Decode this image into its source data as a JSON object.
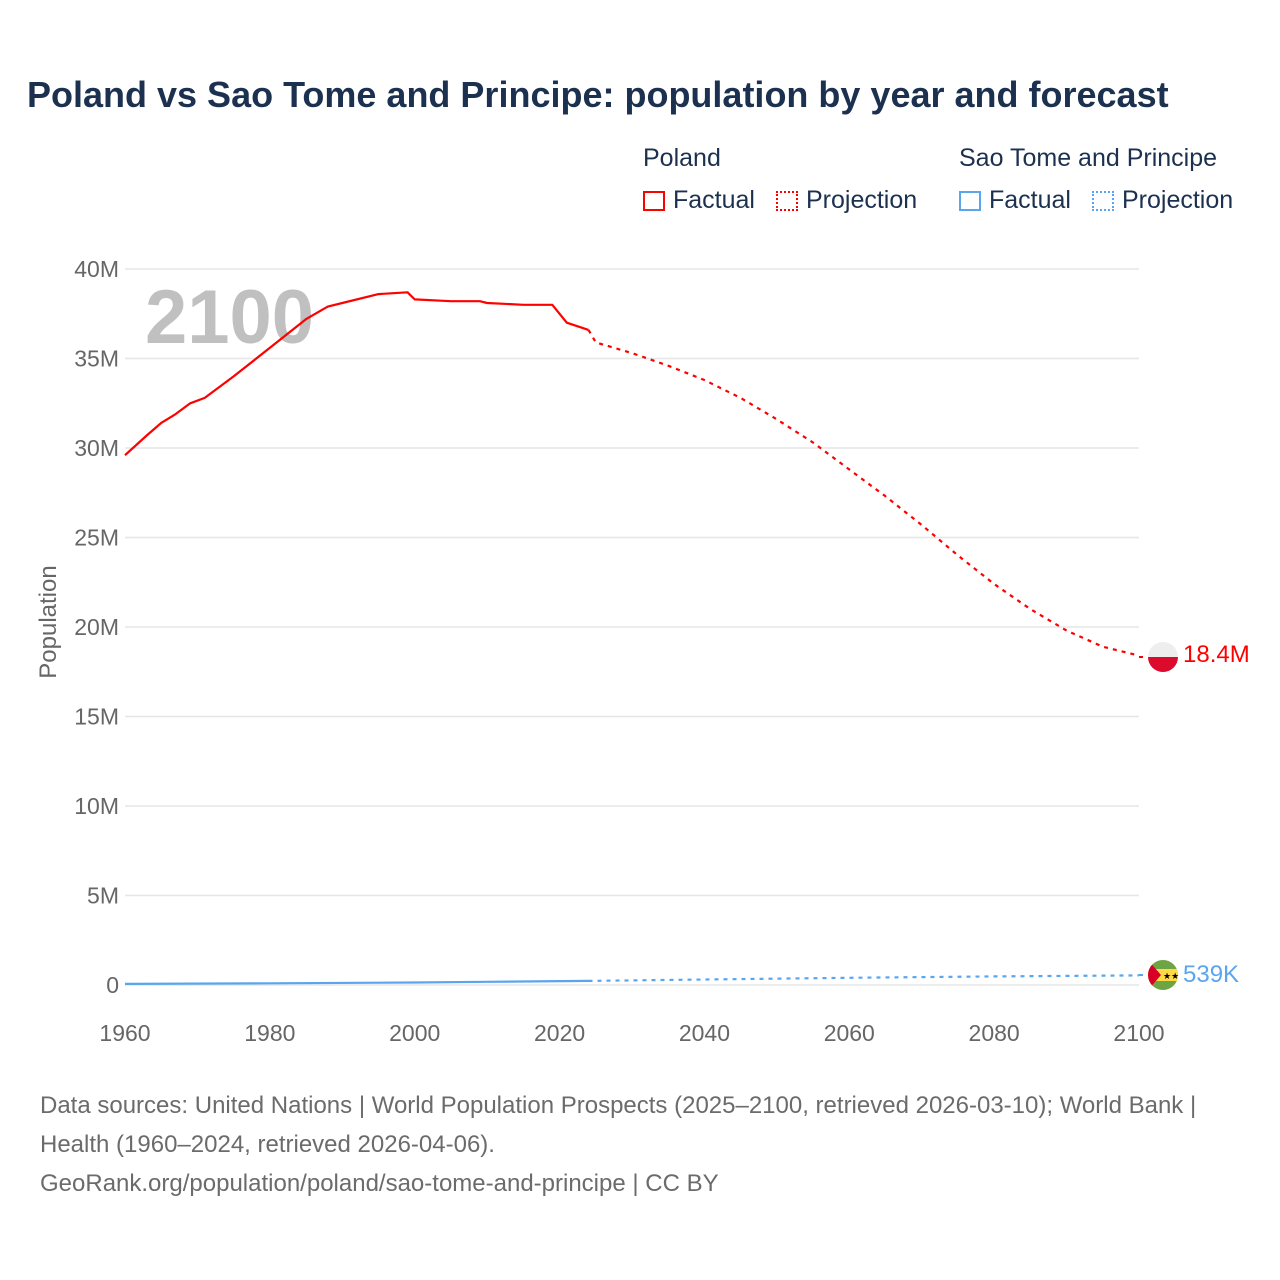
{
  "title": "Poland vs Sao Tome and Principe: population by year and forecast",
  "legend": {
    "groups": [
      {
        "name": "Poland",
        "color": "#ff0000",
        "items": [
          "Factual",
          "Projection"
        ]
      },
      {
        "name": "Sao Tome and Principe",
        "color": "#5aa5ee",
        "items": [
          "Factual",
          "Projection"
        ]
      }
    ]
  },
  "year_overlay": "2100",
  "end_labels": {
    "poland": "18.4M",
    "stp": "539K"
  },
  "footer": {
    "line1": "Data sources: United Nations | World Population Prospects (2025–2100, retrieved 2026-03-10); World Bank | Health (1960–2024, retrieved 2026-04-06).",
    "line2": "GeoRank.org/population/poland/sao-tome-and-principe | CC BY"
  },
  "chart_data": {
    "type": "line",
    "title": "Poland vs Sao Tome and Principe: population by year and forecast",
    "xlabel": "",
    "ylabel": "Population",
    "xlim": [
      1960,
      2100
    ],
    "ylim": [
      0,
      40000000
    ],
    "xticks": [
      1960,
      1980,
      2000,
      2020,
      2040,
      2060,
      2080,
      2100
    ],
    "xtick_labels": [
      "1960",
      "1980",
      "2000",
      "2020",
      "2040",
      "2060",
      "2080",
      "2100"
    ],
    "yticks": [
      0,
      5000000,
      10000000,
      15000000,
      20000000,
      25000000,
      30000000,
      35000000,
      40000000
    ],
    "ytick_labels": [
      "0",
      "5M",
      "10M",
      "15M",
      "20M",
      "25M",
      "30M",
      "35M",
      "40M"
    ],
    "grid": true,
    "legend_position": "top-right",
    "series": [
      {
        "name": "Poland Factual",
        "color": "#ff0000",
        "dashed": false,
        "x": [
          1960,
          1963,
          1965,
          1967,
          1969,
          1971,
          1975,
          1980,
          1985,
          1988,
          1990,
          1995,
          1999,
          2000,
          2005,
          2009,
          2010,
          2015,
          2019,
          2021,
          2024
        ],
        "y": [
          29.6,
          30.7,
          31.4,
          31.9,
          32.5,
          32.8,
          34.0,
          35.6,
          37.2,
          37.9,
          38.1,
          38.6,
          38.7,
          38.3,
          38.2,
          38.2,
          38.1,
          38.0,
          38.0,
          37.0,
          36.6
        ]
      },
      {
        "name": "Poland Projection",
        "color": "#ff0000",
        "dashed": true,
        "x": [
          2024,
          2025,
          2030,
          2035,
          2040,
          2045,
          2050,
          2055,
          2060,
          2065,
          2070,
          2075,
          2080,
          2085,
          2090,
          2095,
          2100
        ],
        "y": [
          36.6,
          35.9,
          35.3,
          34.6,
          33.8,
          32.8,
          31.6,
          30.3,
          28.8,
          27.3,
          25.7,
          24.0,
          22.4,
          21.0,
          19.8,
          18.9,
          18.4
        ]
      },
      {
        "name": "Sao Tome and Principe Factual",
        "color": "#5aa5ee",
        "dashed": false,
        "x": [
          1960,
          1980,
          2000,
          2010,
          2024
        ],
        "y": [
          0.064,
          0.095,
          0.142,
          0.18,
          0.23
        ]
      },
      {
        "name": "Sao Tome and Principe Projection",
        "color": "#5aa5ee",
        "dashed": true,
        "x": [
          2024,
          2040,
          2060,
          2080,
          2100
        ],
        "y": [
          0.23,
          0.31,
          0.4,
          0.48,
          0.539
        ]
      }
    ],
    "y_unit": "millions"
  }
}
